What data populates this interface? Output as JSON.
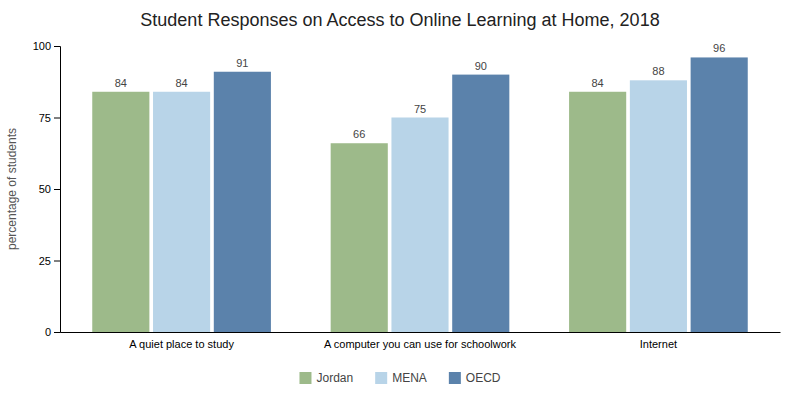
{
  "chart_data": {
    "type": "bar",
    "title": "Student Responses on Access to Online Learning at Home, 2018",
    "ylabel": "percentage of students",
    "categories": [
      "A quiet place to study",
      "A computer you can use for schoolwork",
      "Internet"
    ],
    "series": [
      {
        "name": "Jordan",
        "color": "#9dba8a",
        "values": [
          84,
          66,
          84
        ]
      },
      {
        "name": "MENA",
        "color": "#b8d4e8",
        "values": [
          84,
          75,
          88
        ]
      },
      {
        "name": "OECD",
        "color": "#5b82ab",
        "values": [
          91,
          90,
          96
        ]
      }
    ],
    "ylim": [
      0,
      100
    ],
    "yticks": [
      0,
      25,
      50,
      75,
      100
    ],
    "data_labels": true,
    "grid": false,
    "legend": "bottom"
  }
}
